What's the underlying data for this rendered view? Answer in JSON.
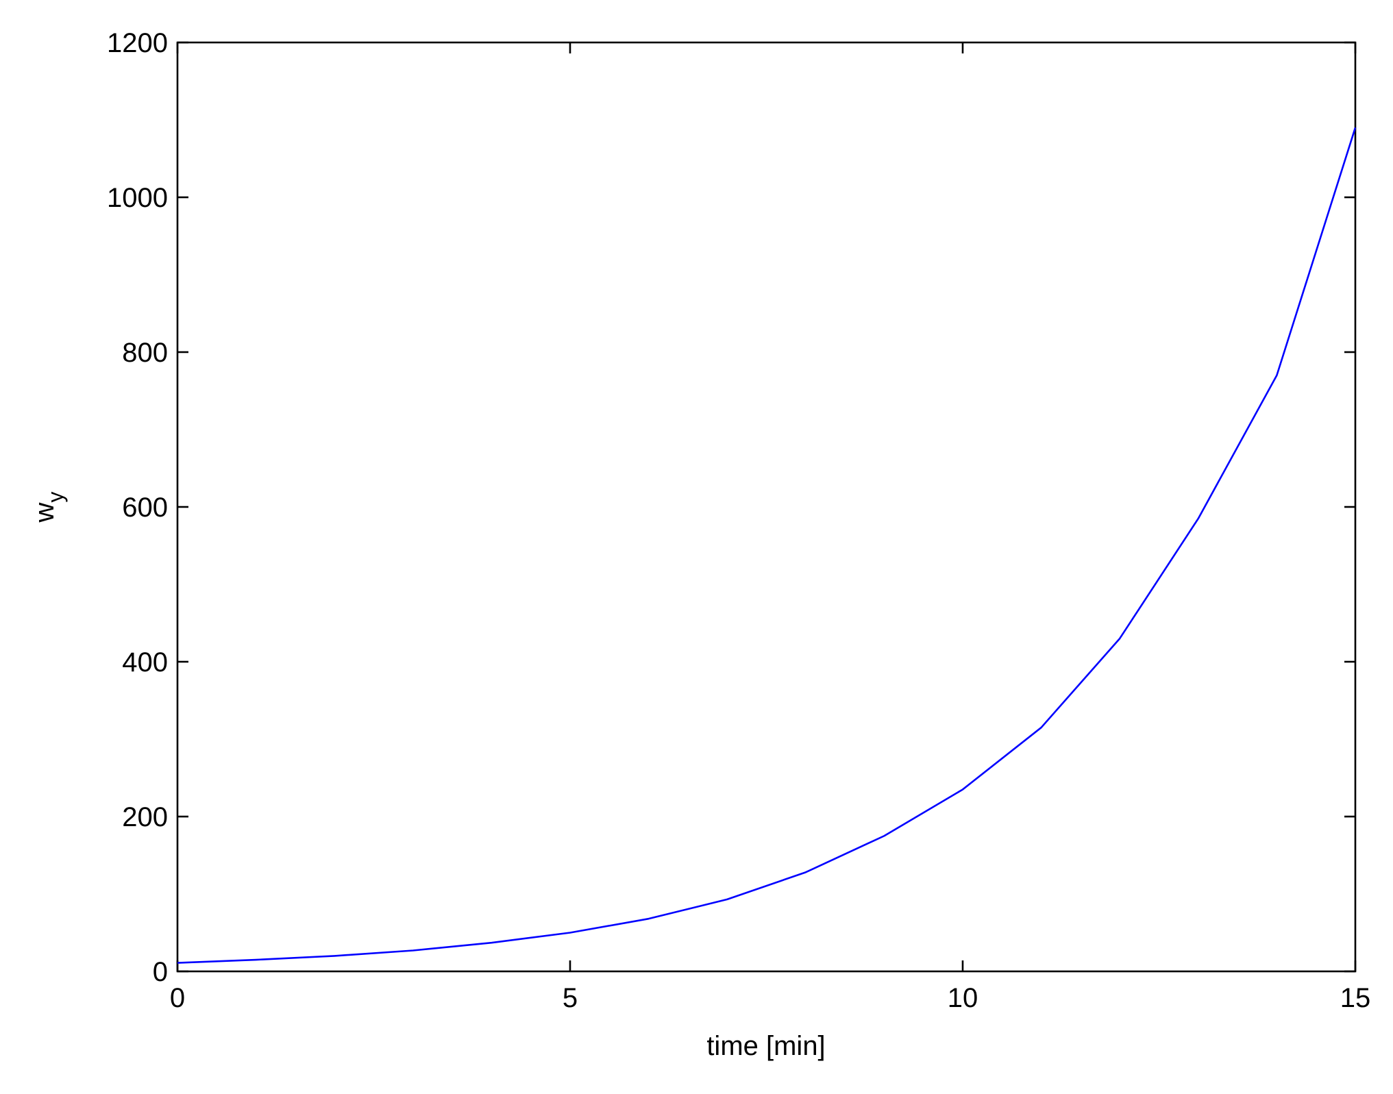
{
  "chart_data": {
    "type": "line",
    "x_label": "time [min]",
    "y_label": {
      "base": "w",
      "subscript": "y"
    },
    "x": [
      0,
      1,
      2,
      3,
      4,
      5,
      6,
      7,
      8,
      9,
      10,
      11,
      12,
      13,
      14,
      15
    ],
    "series": [
      {
        "color": "#0000ff",
        "values": [
          11,
          15,
          20,
          27,
          37,
          50,
          68,
          93,
          128,
          175,
          235,
          315,
          430,
          585,
          770,
          1090
        ]
      }
    ],
    "xlim": [
      0,
      15
    ],
    "xticks": [
      0,
      5,
      10,
      15
    ],
    "ylim": [
      0,
      1200
    ],
    "yticks": [
      0,
      200,
      400,
      600,
      800,
      1000,
      1200
    ],
    "grid": false
  }
}
